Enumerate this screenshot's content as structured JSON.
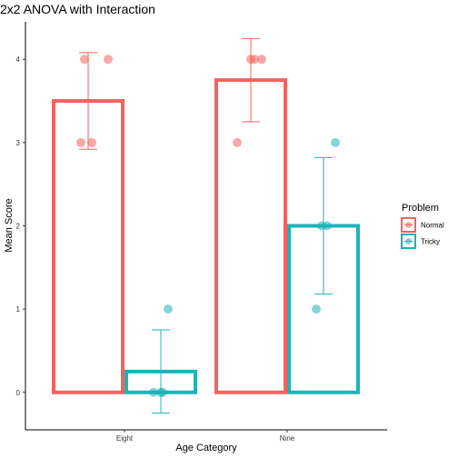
{
  "chart_data": {
    "type": "bar",
    "title": "2x2 ANOVA with Interaction",
    "xlabel": "Age Category",
    "ylabel": "Mean Score",
    "categories": [
      "Eight",
      "Nine"
    ],
    "ylim": [
      -0.45,
      4.45
    ],
    "yticks": [
      "0",
      "1",
      "2",
      "3",
      "4"
    ],
    "grid": false,
    "legend": {
      "title": "Problem",
      "placement": "right"
    },
    "colors": {
      "Normal": "#F0645F",
      "Tricky": "#1DB3B8"
    },
    "series": [
      {
        "name": "Normal",
        "values": [
          3.5,
          3.75
        ],
        "error_low": [
          2.92,
          3.25
        ],
        "error_high": [
          4.08,
          4.25
        ],
        "points": [
          [
            3,
            3,
            4,
            4
          ],
          [
            3,
            4,
            4,
            4
          ]
        ]
      },
      {
        "name": "Tricky",
        "values": [
          0.25,
          2.0
        ],
        "error_low": [
          -0.25,
          1.18
        ],
        "error_high": [
          0.75,
          2.82
        ],
        "points": [
          [
            1,
            0,
            0,
            0
          ],
          [
            1,
            2,
            2,
            3
          ]
        ]
      }
    ]
  }
}
